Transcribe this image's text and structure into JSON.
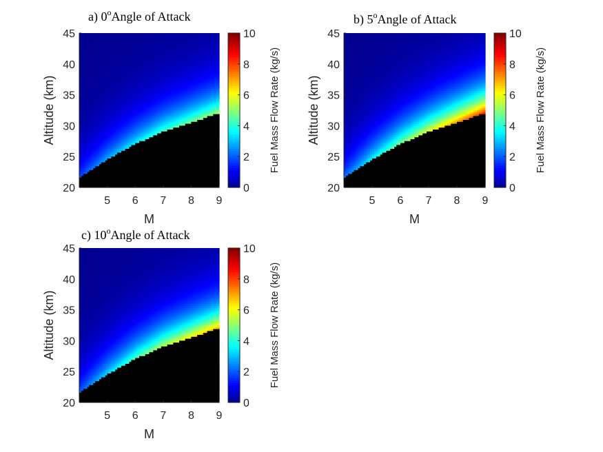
{
  "chart_data": [
    {
      "type": "heatmap",
      "title_prefix": "a) 0",
      "title_sup": "o",
      "title_suffix": "Angle of Attack",
      "xlabel": "M",
      "ylabel": "Altitude (km)",
      "xlim": [
        4,
        9
      ],
      "ylim": [
        20,
        45
      ],
      "xticks": [
        "5",
        "6",
        "7",
        "8",
        "9"
      ],
      "yticks": [
        "20",
        "25",
        "30",
        "35",
        "40",
        "45"
      ],
      "colorbar": {
        "label": "Fuel Mass Flow Rate (kg/s)",
        "range": [
          0,
          10
        ],
        "ticks": [
          "0",
          "2",
          "4",
          "6",
          "8",
          "10"
        ],
        "colormap": "jet"
      },
      "boundary": {
        "M": [
          4,
          5,
          6,
          7,
          8,
          9
        ],
        "altitude_km": [
          21.5,
          24.5,
          27.0,
          29.0,
          30.5,
          32.0
        ]
      },
      "max_value_at_boundary": [
        1.8,
        2.8,
        3.6,
        4.3,
        4.8,
        5.3
      ],
      "below_boundary_color": "#000000"
    },
    {
      "type": "heatmap",
      "title_prefix": "b) 5",
      "title_sup": "o",
      "title_suffix": "Angle of Attack",
      "xlabel": "M",
      "ylabel": "Altitude (km)",
      "xlim": [
        4,
        9
      ],
      "ylim": [
        20,
        45
      ],
      "xticks": [
        "5",
        "6",
        "7",
        "8",
        "9"
      ],
      "yticks": [
        "20",
        "25",
        "30",
        "35",
        "40",
        "45"
      ],
      "colorbar": {
        "label": "Fuel Mass Flow Rate (kg/s)",
        "range": [
          0,
          10
        ],
        "ticks": [
          "0",
          "2",
          "4",
          "6",
          "8",
          "10"
        ],
        "colormap": "jet"
      },
      "boundary": {
        "M": [
          4,
          5,
          6,
          7,
          8,
          9
        ],
        "altitude_km": [
          21.5,
          24.5,
          27.0,
          29.0,
          30.5,
          32.0
        ]
      },
      "max_value_at_boundary": [
        2.2,
        3.6,
        4.9,
        6.0,
        7.2,
        8.4
      ],
      "below_boundary_color": "#000000"
    },
    {
      "type": "heatmap",
      "title_prefix": "c) 10",
      "title_sup": "o",
      "title_suffix": "Angle of Attack",
      "xlabel": "M",
      "ylabel": "Altitude (km)",
      "xlim": [
        4,
        9
      ],
      "ylim": [
        20,
        45
      ],
      "xticks": [
        "5",
        "6",
        "7",
        "8",
        "9"
      ],
      "yticks": [
        "20",
        "25",
        "30",
        "35",
        "40",
        "45"
      ],
      "colorbar": {
        "label": "Fuel Mass Flow Rate (kg/s)",
        "range": [
          0,
          10
        ],
        "ticks": [
          "0",
          "2",
          "4",
          "6",
          "8",
          "10"
        ],
        "colormap": "jet"
      },
      "boundary": {
        "M": [
          4,
          5,
          6,
          7,
          8,
          9
        ],
        "altitude_km": [
          21.5,
          24.5,
          27.0,
          29.0,
          30.5,
          32.0
        ]
      },
      "max_value_at_boundary": [
        2.0,
        3.3,
        4.5,
        5.5,
        6.3,
        7.0
      ],
      "below_boundary_color": "#000000"
    }
  ]
}
